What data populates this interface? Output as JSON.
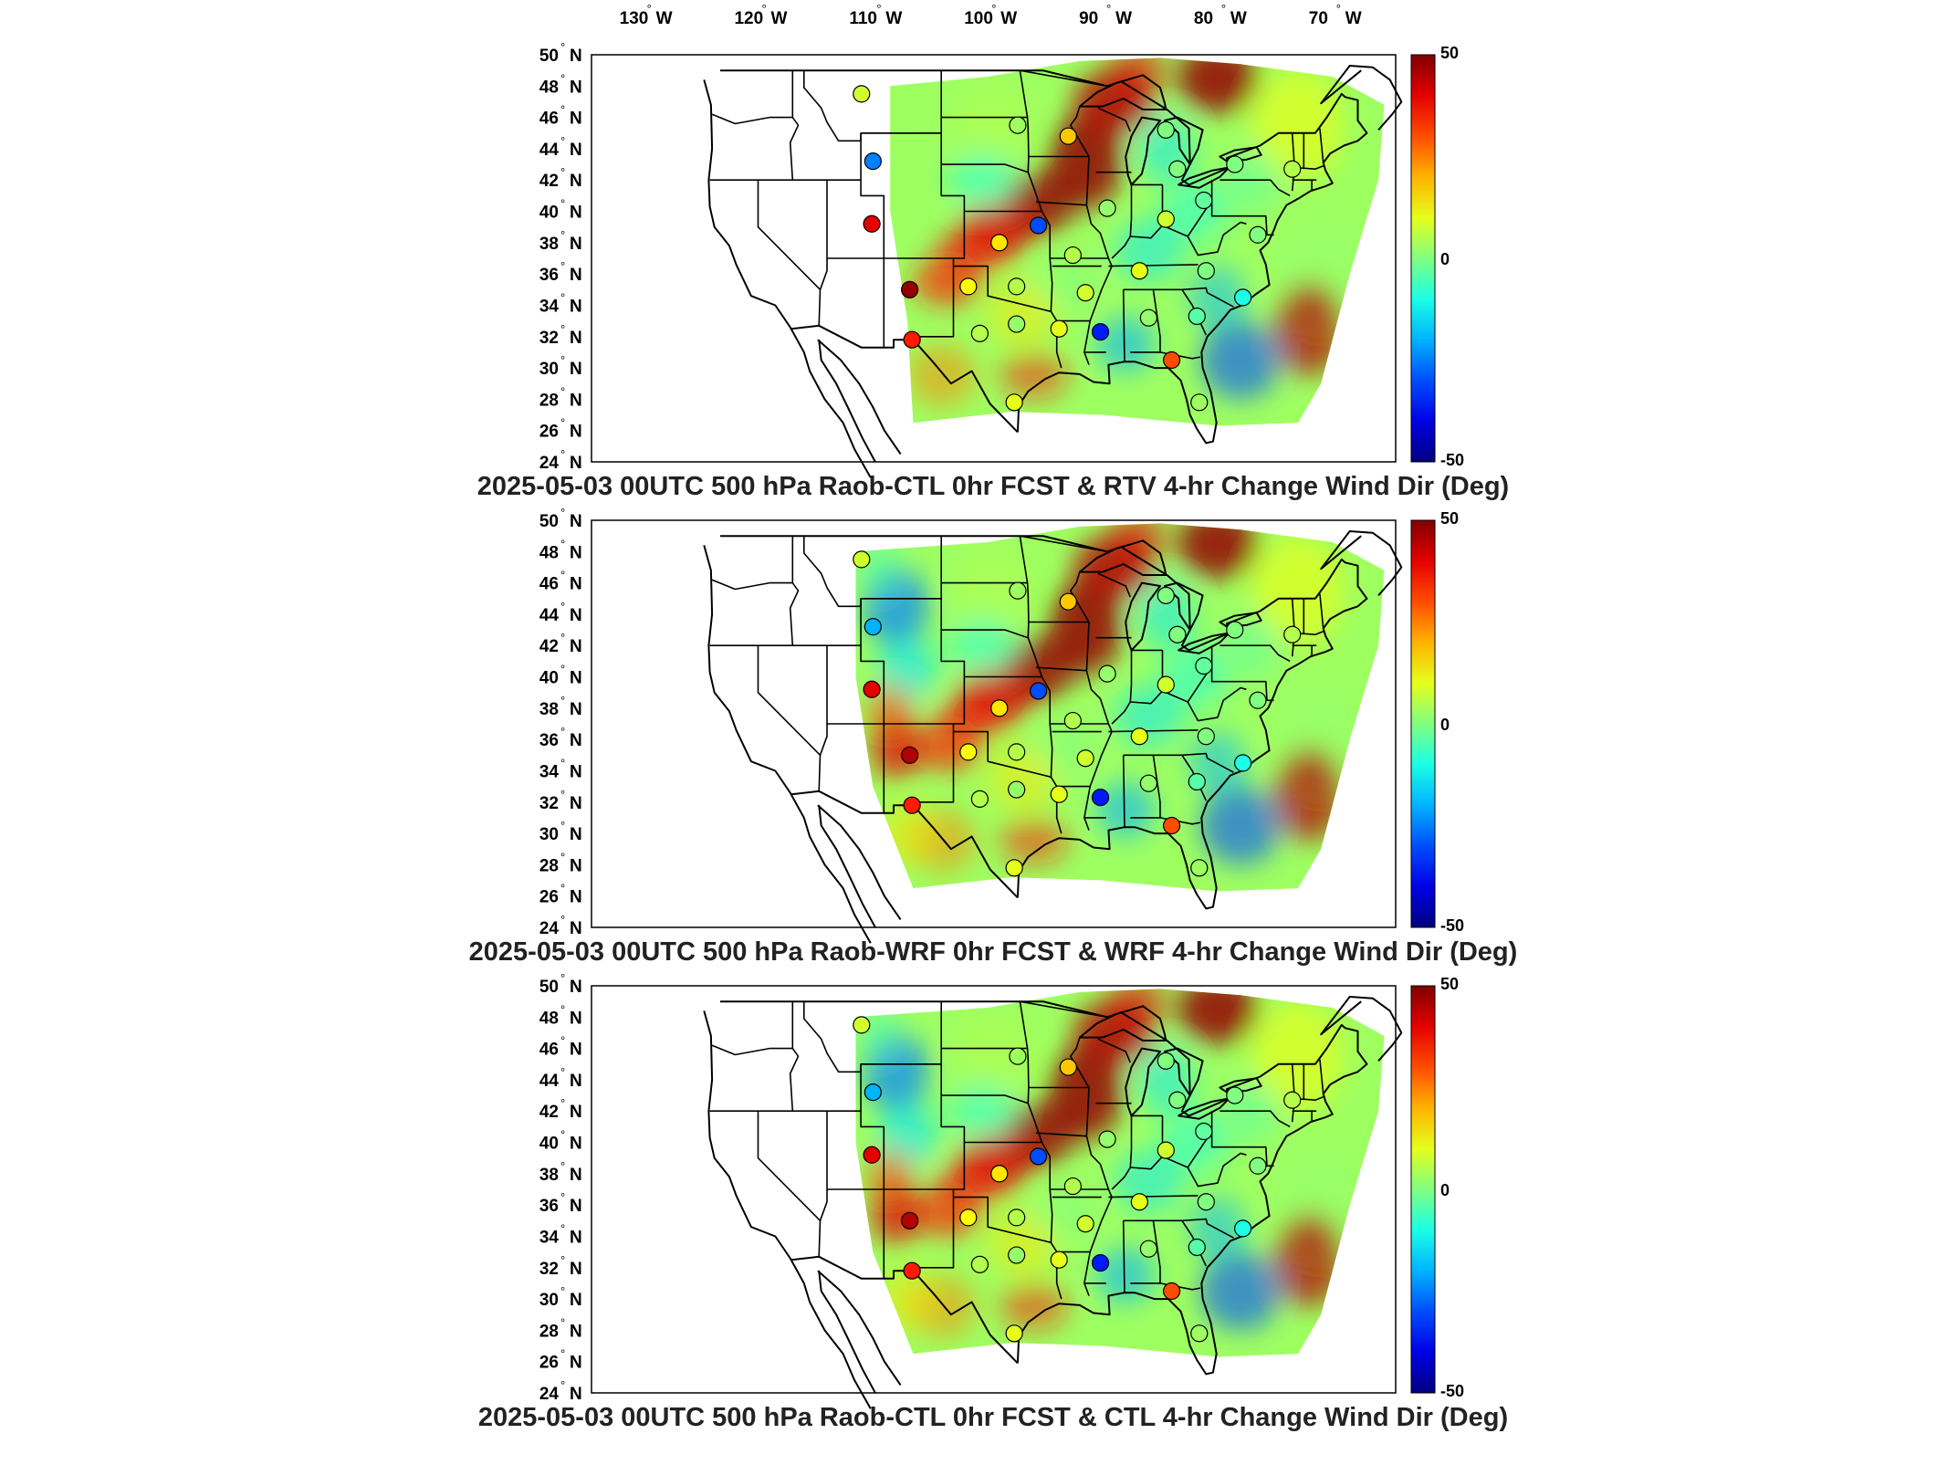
{
  "lon_labels": [
    "130",
    "120",
    "110",
    "100",
    "90",
    "80",
    "70"
  ],
  "lon_suffix": "W",
  "lat_labels": [
    "50",
    "48",
    "46",
    "44",
    "42",
    "40",
    "38",
    "36",
    "34",
    "32",
    "30",
    "28",
    "26",
    "24"
  ],
  "lat_suffix": "N",
  "degree_mark": "°",
  "colorbar": {
    "max_label": "50",
    "mid_label": "0",
    "min_label": "-50",
    "min": -50,
    "max": 50,
    "colormap": "jet"
  },
  "panels": [
    {
      "title": "2025-05-03 00UTC 500 hPa Raob-CTL 0hr FCST & RTV 4-hr Change Wind Dir (Deg)",
      "field_variant": "rtv",
      "stations": [
        {
          "lon": -111.0,
          "lat": 47.5,
          "value": 8
        },
        {
          "lon": -110.0,
          "lat": 43.2,
          "value": -25
        },
        {
          "lon": -110.1,
          "lat": 39.2,
          "value": 40
        },
        {
          "lon": -106.8,
          "lat": 35.0,
          "value": 48
        },
        {
          "lon": -106.6,
          "lat": 31.8,
          "value": 35
        },
        {
          "lon": -100.7,
          "lat": 32.2,
          "value": 5
        },
        {
          "lon": -99.0,
          "lat": 38.0,
          "value": 15
        },
        {
          "lon": -101.7,
          "lat": 35.2,
          "value": 12
        },
        {
          "lon": -97.5,
          "lat": 35.2,
          "value": 5
        },
        {
          "lon": -97.5,
          "lat": 32.8,
          "value": 2
        },
        {
          "lon": -97.7,
          "lat": 27.8,
          "value": 10
        },
        {
          "lon": -97.4,
          "lat": 45.5,
          "value": 3
        },
        {
          "lon": -93.0,
          "lat": 44.8,
          "value": 18
        },
        {
          "lon": -95.6,
          "lat": 39.1,
          "value": -30
        },
        {
          "lon": -92.6,
          "lat": 37.2,
          "value": 5
        },
        {
          "lon": -91.5,
          "lat": 34.8,
          "value": 8
        },
        {
          "lon": -93.8,
          "lat": 32.5,
          "value": 10
        },
        {
          "lon": -90.2,
          "lat": 32.3,
          "value": -35
        },
        {
          "lon": -89.6,
          "lat": 40.2,
          "value": 2
        },
        {
          "lon": -86.8,
          "lat": 36.2,
          "value": 10
        },
        {
          "lon": -86.0,
          "lat": 33.2,
          "value": 2
        },
        {
          "lon": -84.5,
          "lat": 45.2,
          "value": 0
        },
        {
          "lon": -83.5,
          "lat": 42.7,
          "value": 0
        },
        {
          "lon": -84.5,
          "lat": 39.5,
          "value": 8
        },
        {
          "lon": -81.2,
          "lat": 40.7,
          "value": -3
        },
        {
          "lon": -81.0,
          "lat": 36.2,
          "value": 0
        },
        {
          "lon": -81.8,
          "lat": 33.3,
          "value": -4
        },
        {
          "lon": -84.0,
          "lat": 30.5,
          "value": 30
        },
        {
          "lon": -81.6,
          "lat": 27.8,
          "value": 3
        },
        {
          "lon": -78.5,
          "lat": 43.0,
          "value": 0
        },
        {
          "lon": -73.5,
          "lat": 42.7,
          "value": 5
        },
        {
          "lon": -77.8,
          "lat": 34.5,
          "value": -10
        },
        {
          "lon": -76.5,
          "lat": 38.5,
          "value": 0
        }
      ]
    },
    {
      "title": "2025-05-03 00UTC 500 hPa Raob-WRF 0hr FCST & WRF 4-hr Change Wind Dir (Deg)",
      "field_variant": "wrf",
      "stations": [
        {
          "lon": -111.0,
          "lat": 47.5,
          "value": 8
        },
        {
          "lon": -110.0,
          "lat": 43.2,
          "value": -20
        },
        {
          "lon": -110.1,
          "lat": 39.2,
          "value": 40
        },
        {
          "lon": -106.8,
          "lat": 35.0,
          "value": 45
        },
        {
          "lon": -106.6,
          "lat": 31.8,
          "value": 35
        },
        {
          "lon": -100.7,
          "lat": 32.2,
          "value": 5
        },
        {
          "lon": -99.0,
          "lat": 38.0,
          "value": 15
        },
        {
          "lon": -101.7,
          "lat": 35.2,
          "value": 12
        },
        {
          "lon": -97.5,
          "lat": 35.2,
          "value": 5
        },
        {
          "lon": -97.5,
          "lat": 32.8,
          "value": 2
        },
        {
          "lon": -97.7,
          "lat": 27.8,
          "value": 10
        },
        {
          "lon": -97.4,
          "lat": 45.5,
          "value": 3
        },
        {
          "lon": -93.0,
          "lat": 44.8,
          "value": 18
        },
        {
          "lon": -95.6,
          "lat": 39.1,
          "value": -30
        },
        {
          "lon": -92.6,
          "lat": 37.2,
          "value": 5
        },
        {
          "lon": -91.5,
          "lat": 34.8,
          "value": 8
        },
        {
          "lon": -93.8,
          "lat": 32.5,
          "value": 10
        },
        {
          "lon": -90.2,
          "lat": 32.3,
          "value": -35
        },
        {
          "lon": -89.6,
          "lat": 40.2,
          "value": 2
        },
        {
          "lon": -86.8,
          "lat": 36.2,
          "value": 10
        },
        {
          "lon": -86.0,
          "lat": 33.2,
          "value": 2
        },
        {
          "lon": -84.5,
          "lat": 45.2,
          "value": 0
        },
        {
          "lon": -83.5,
          "lat": 42.7,
          "value": 0
        },
        {
          "lon": -84.5,
          "lat": 39.5,
          "value": 8
        },
        {
          "lon": -81.2,
          "lat": 40.7,
          "value": -3
        },
        {
          "lon": -81.0,
          "lat": 36.2,
          "value": 0
        },
        {
          "lon": -81.8,
          "lat": 33.3,
          "value": -4
        },
        {
          "lon": -84.0,
          "lat": 30.5,
          "value": 30
        },
        {
          "lon": -81.6,
          "lat": 27.8,
          "value": 3
        },
        {
          "lon": -78.5,
          "lat": 43.0,
          "value": 0
        },
        {
          "lon": -73.5,
          "lat": 42.7,
          "value": 5
        },
        {
          "lon": -77.8,
          "lat": 34.5,
          "value": -10
        },
        {
          "lon": -76.5,
          "lat": 38.5,
          "value": 0
        }
      ]
    },
    {
      "title": "2025-05-03 00UTC 500 hPa Raob-CTL 0hr FCST & CTL 4-hr Change Wind Dir (Deg)",
      "field_variant": "ctl",
      "stations": [
        {
          "lon": -111.0,
          "lat": 47.5,
          "value": 8
        },
        {
          "lon": -110.0,
          "lat": 43.2,
          "value": -20
        },
        {
          "lon": -110.1,
          "lat": 39.2,
          "value": 40
        },
        {
          "lon": -106.8,
          "lat": 35.0,
          "value": 45
        },
        {
          "lon": -106.6,
          "lat": 31.8,
          "value": 35
        },
        {
          "lon": -100.7,
          "lat": 32.2,
          "value": 5
        },
        {
          "lon": -99.0,
          "lat": 38.0,
          "value": 15
        },
        {
          "lon": -101.7,
          "lat": 35.2,
          "value": 12
        },
        {
          "lon": -97.5,
          "lat": 35.2,
          "value": 5
        },
        {
          "lon": -97.5,
          "lat": 32.8,
          "value": 2
        },
        {
          "lon": -97.7,
          "lat": 27.8,
          "value": 10
        },
        {
          "lon": -97.4,
          "lat": 45.5,
          "value": 3
        },
        {
          "lon": -93.0,
          "lat": 44.8,
          "value": 18
        },
        {
          "lon": -95.6,
          "lat": 39.1,
          "value": -30
        },
        {
          "lon": -92.6,
          "lat": 37.2,
          "value": 5
        },
        {
          "lon": -91.5,
          "lat": 34.8,
          "value": 8
        },
        {
          "lon": -93.8,
          "lat": 32.5,
          "value": 10
        },
        {
          "lon": -90.2,
          "lat": 32.3,
          "value": -35
        },
        {
          "lon": -89.6,
          "lat": 40.2,
          "value": 2
        },
        {
          "lon": -86.8,
          "lat": 36.2,
          "value": 10
        },
        {
          "lon": -86.0,
          "lat": 33.2,
          "value": 2
        },
        {
          "lon": -84.5,
          "lat": 45.2,
          "value": 0
        },
        {
          "lon": -83.5,
          "lat": 42.7,
          "value": 0
        },
        {
          "lon": -84.5,
          "lat": 39.5,
          "value": 8
        },
        {
          "lon": -81.2,
          "lat": 40.7,
          "value": -3
        },
        {
          "lon": -81.0,
          "lat": 36.2,
          "value": 0
        },
        {
          "lon": -81.8,
          "lat": 33.3,
          "value": -4
        },
        {
          "lon": -84.0,
          "lat": 30.5,
          "value": 30
        },
        {
          "lon": -81.6,
          "lat": 27.8,
          "value": 3
        },
        {
          "lon": -78.5,
          "lat": 43.0,
          "value": 0
        },
        {
          "lon": -73.5,
          "lat": 42.7,
          "value": 5
        },
        {
          "lon": -77.8,
          "lat": 34.5,
          "value": -10
        },
        {
          "lon": -76.5,
          "lat": 38.5,
          "value": 0
        }
      ]
    }
  ]
}
